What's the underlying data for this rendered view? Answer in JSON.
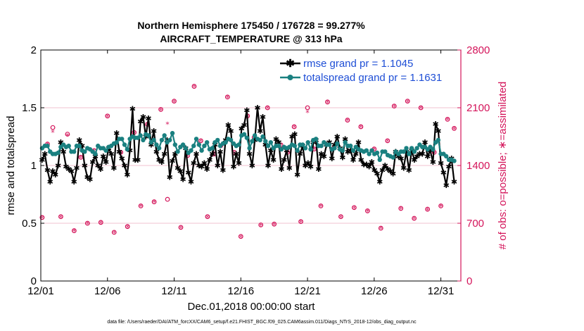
{
  "chart_data": {
    "type": "line",
    "title_line1": "Northern Hemisphere 175450 / 176728 = 99.277%",
    "title_line2": "AIRCRAFT_TEMPERATURE @ 313 hPa",
    "xlabel": "Dec.01,2018 00:00:00 start",
    "ylabel_left": "rmse and totalspread",
    "ylabel_right": "# of obs: o=possible; ∗=assimilated",
    "footnote": "data file: /Users/raeder/DAI/ATM_forcXX/CAM6_setup/f.e21.FHIST_BGC.f09_025.CAM6assim.011/Diags_NTrS_2018-12/obs_diag_output.nc",
    "x_range": [
      0,
      31.5
    ],
    "y_left_range": [
      0,
      2
    ],
    "y_right_range": [
      0,
      2800
    ],
    "x_ticks": [
      {
        "value": 0,
        "label": "12/01"
      },
      {
        "value": 5,
        "label": "12/06"
      },
      {
        "value": 10,
        "label": "12/11"
      },
      {
        "value": 15,
        "label": "12/16"
      },
      {
        "value": 20,
        "label": "12/21"
      },
      {
        "value": 25,
        "label": "12/26"
      },
      {
        "value": 30,
        "label": "12/31"
      }
    ],
    "y_left_ticks": [
      {
        "value": 0,
        "label": "0"
      },
      {
        "value": 0.5,
        "label": "0.5"
      },
      {
        "value": 1,
        "label": "1"
      },
      {
        "value": 1.5,
        "label": "1.5"
      },
      {
        "value": 2,
        "label": "2"
      }
    ],
    "y_right_ticks": [
      {
        "value": 0,
        "label": "0"
      },
      {
        "value": 700,
        "label": "700"
      },
      {
        "value": 1400,
        "label": "1400"
      },
      {
        "value": 2100,
        "label": "2100"
      },
      {
        "value": 2800,
        "label": "2800"
      }
    ],
    "series": [
      {
        "name": "rmse",
        "legend": "rmse grand pr = 1.1045",
        "color": "#000000",
        "values": [
          1.05,
          1.1,
          0.96,
          0.86,
          0.95,
          0.92,
          1.0,
          1.2,
          1.12,
          0.99,
          0.97,
          0.95,
          0.86,
          0.98,
          1.22,
          1.17,
          1.0,
          0.9,
          0.88,
          1.03,
          1.08,
          1.0,
          0.97,
          1.08,
          1.03,
          1.15,
          1.1,
          0.98,
          1.28,
          1.12,
          1.06,
          1.0,
          0.92,
          1.13,
          1.49,
          1.05,
          1.05,
          1.38,
          1.42,
          1.25,
          1.41,
          1.18,
          1.3,
          1.12,
          1.05,
          1.03,
          1.1,
          1.22,
          0.9,
          1.04,
          1.1,
          0.98,
          0.95,
          0.88,
          1.15,
          0.94,
          0.86,
          1.02,
          1.1,
          1.0,
          0.99,
          1.02,
          0.97,
          1.05,
          1.1,
          1.18,
          1.0,
          1.12,
          0.96,
          1.22,
          1.35,
          1.3,
          0.99,
          1.1,
          1.02,
          1.32,
          1.35,
          1.48,
          1.1,
          1.0,
          1.22,
          1.5,
          1.3,
          1.42,
          1.18,
          1.0,
          1.13,
          1.05,
          1.23,
          1.2,
          0.97,
          1.05,
          1.13,
          0.98,
          1.25,
          1.27,
          0.92,
          1.1,
          1.17,
          1.0,
          1.02,
          0.99,
          1.2,
          1.22,
          0.97,
          1.1,
          1.08,
          1.18,
          1.2,
          1.06,
          1.18,
          1.25,
          1.15,
          1.07,
          1.23,
          1.12,
          1.13,
          1.05,
          1.1,
          1.2,
          1.05,
          1.01,
          1.01,
          0.99,
          1.03,
          0.96,
          0.93,
          0.86,
          0.96,
          1.0,
          0.97,
          0.95,
          0.93,
          1.12,
          1.08,
          1.06,
          0.98,
          1.12,
          0.96,
          1.13,
          1.05,
          1.08,
          1.1,
          1.1,
          1.2,
          1.08,
          1.13,
          1.03,
          1.36,
          1.3,
          1.02,
          0.94,
          0.83,
          0.99,
          1.06,
          0.86
        ]
      },
      {
        "name": "totalspread",
        "legend": "totalspread grand pr = 1.1631",
        "color": "#1a8080",
        "values": [
          1.15,
          1.17,
          1.17,
          1.12,
          1.1,
          1.1,
          1.11,
          1.16,
          1.18,
          1.16,
          1.17,
          1.12,
          1.12,
          1.17,
          1.17,
          1.13,
          1.12,
          1.15,
          1.14,
          1.12,
          1.1,
          1.17,
          1.15,
          1.15,
          1.13,
          1.16,
          1.17,
          1.19,
          1.2,
          1.23,
          1.23,
          1.18,
          1.14,
          1.23,
          1.25,
          1.24,
          1.24,
          1.26,
          1.22,
          1.27,
          1.26,
          1.2,
          1.22,
          1.18,
          1.15,
          1.22,
          1.26,
          1.2,
          1.22,
          1.28,
          1.18,
          1.12,
          1.16,
          1.18,
          1.15,
          1.11,
          1.13,
          1.17,
          1.23,
          1.18,
          1.13,
          1.17,
          1.2,
          1.14,
          1.15,
          1.2,
          1.22,
          1.17,
          1.19,
          1.2,
          1.23,
          1.22,
          1.19,
          1.17,
          1.18,
          1.26,
          1.27,
          1.24,
          1.15,
          1.21,
          1.26,
          1.23,
          1.22,
          1.25,
          1.21,
          1.17,
          1.2,
          1.15,
          1.17,
          1.17,
          1.14,
          1.16,
          1.15,
          1.16,
          1.18,
          1.17,
          1.13,
          1.18,
          1.18,
          1.15,
          1.2,
          1.14,
          1.22,
          1.23,
          1.17,
          1.17,
          1.2,
          1.18,
          1.18,
          1.14,
          1.15,
          1.19,
          1.14,
          1.13,
          1.2,
          1.17,
          1.17,
          1.13,
          1.16,
          1.14,
          1.13,
          1.12,
          1.13,
          1.1,
          1.13,
          1.1,
          1.11,
          1.05,
          1.12,
          1.12,
          1.09,
          1.08,
          1.07,
          1.12,
          1.1,
          1.12,
          1.12,
          1.15,
          1.1,
          1.15,
          1.12,
          1.15,
          1.18,
          1.16,
          1.16,
          1.14,
          1.16,
          1.14,
          1.2,
          1.22,
          1.1,
          1.1,
          1.08,
          1.05,
          1.05,
          1.04
        ]
      }
    ],
    "obs_possible": [
      {
        "x": 0.1,
        "y": 770
      },
      {
        "x": 0.5,
        "y": 1660
      },
      {
        "x": 0.9,
        "y": 1860
      },
      {
        "x": 1.5,
        "y": 780
      },
      {
        "x": 2.0,
        "y": 1780
      },
      {
        "x": 2.5,
        "y": 610
      },
      {
        "x": 3.0,
        "y": 1500
      },
      {
        "x": 3.5,
        "y": 700
      },
      {
        "x": 4.0,
        "y": 1580
      },
      {
        "x": 4.5,
        "y": 710
      },
      {
        "x": 5.0,
        "y": 2000
      },
      {
        "x": 5.5,
        "y": 590
      },
      {
        "x": 6.0,
        "y": 1560
      },
      {
        "x": 6.5,
        "y": 660
      },
      {
        "x": 7.0,
        "y": 1800
      },
      {
        "x": 7.5,
        "y": 910
      },
      {
        "x": 8.0,
        "y": 1900
      },
      {
        "x": 8.5,
        "y": 960
      },
      {
        "x": 9.0,
        "y": 2080
      },
      {
        "x": 9.5,
        "y": 990
      },
      {
        "x": 10.0,
        "y": 2180
      },
      {
        "x": 10.5,
        "y": 650
      },
      {
        "x": 11.0,
        "y": 1520
      },
      {
        "x": 11.5,
        "y": 2360
      },
      {
        "x": 12.0,
        "y": 1700
      },
      {
        "x": 12.5,
        "y": 780
      },
      {
        "x": 13.0,
        "y": 1540
      },
      {
        "x": 13.5,
        "y": 1640
      },
      {
        "x": 14.0,
        "y": 2230
      },
      {
        "x": 14.5,
        "y": 1560
      },
      {
        "x": 15.0,
        "y": 540
      },
      {
        "x": 15.5,
        "y": 2000
      },
      {
        "x": 16.0,
        "y": 1740
      },
      {
        "x": 16.5,
        "y": 680
      },
      {
        "x": 17.0,
        "y": 2100
      },
      {
        "x": 17.5,
        "y": 690
      },
      {
        "x": 18.0,
        "y": 1650
      },
      {
        "x": 18.5,
        "y": 1560
      },
      {
        "x": 19.0,
        "y": 1870
      },
      {
        "x": 19.5,
        "y": 720
      },
      {
        "x": 20.0,
        "y": 2100
      },
      {
        "x": 20.5,
        "y": 1600
      },
      {
        "x": 21.0,
        "y": 910
      },
      {
        "x": 21.5,
        "y": 2170
      },
      {
        "x": 22.0,
        "y": 1620
      },
      {
        "x": 22.5,
        "y": 780
      },
      {
        "x": 23.0,
        "y": 1950
      },
      {
        "x": 23.5,
        "y": 890
      },
      {
        "x": 24.0,
        "y": 1870
      },
      {
        "x": 24.5,
        "y": 850
      },
      {
        "x": 25.0,
        "y": 1600
      },
      {
        "x": 25.5,
        "y": 640
      },
      {
        "x": 26.0,
        "y": 1700
      },
      {
        "x": 26.5,
        "y": 2120
      },
      {
        "x": 27.0,
        "y": 880
      },
      {
        "x": 27.5,
        "y": 2180
      },
      {
        "x": 28.0,
        "y": 760
      },
      {
        "x": 28.5,
        "y": 2100
      },
      {
        "x": 29.0,
        "y": 870
      },
      {
        "x": 29.5,
        "y": 1560
      },
      {
        "x": 30.0,
        "y": 910
      },
      {
        "x": 30.5,
        "y": 1960
      },
      {
        "x": 31.0,
        "y": 1850
      }
    ],
    "obs_assimilated": [
      {
        "x": 0.1,
        "y": 760
      },
      {
        "x": 0.5,
        "y": 1650
      },
      {
        "x": 0.9,
        "y": 1800
      },
      {
        "x": 1.5,
        "y": 770
      },
      {
        "x": 2.0,
        "y": 1760
      },
      {
        "x": 2.5,
        "y": 600
      },
      {
        "x": 3.0,
        "y": 1490
      },
      {
        "x": 3.5,
        "y": 690
      },
      {
        "x": 4.0,
        "y": 1570
      },
      {
        "x": 4.5,
        "y": 700
      },
      {
        "x": 5.0,
        "y": 1990
      },
      {
        "x": 5.5,
        "y": 580
      },
      {
        "x": 6.0,
        "y": 1550
      },
      {
        "x": 6.5,
        "y": 650
      },
      {
        "x": 7.0,
        "y": 1790
      },
      {
        "x": 7.5,
        "y": 900
      },
      {
        "x": 8.0,
        "y": 1890
      },
      {
        "x": 8.5,
        "y": 950
      },
      {
        "x": 9.0,
        "y": 2070
      },
      {
        "x": 9.5,
        "y": 1900
      },
      {
        "x": 10.0,
        "y": 2170
      },
      {
        "x": 10.5,
        "y": 640
      },
      {
        "x": 11.0,
        "y": 1510
      },
      {
        "x": 11.5,
        "y": 2350
      },
      {
        "x": 12.0,
        "y": 1690
      },
      {
        "x": 12.5,
        "y": 770
      },
      {
        "x": 13.0,
        "y": 1530
      },
      {
        "x": 13.5,
        "y": 1630
      },
      {
        "x": 14.0,
        "y": 2220
      },
      {
        "x": 14.5,
        "y": 1550
      },
      {
        "x": 15.0,
        "y": 530
      },
      {
        "x": 15.5,
        "y": 1990
      },
      {
        "x": 16.0,
        "y": 1730
      },
      {
        "x": 16.5,
        "y": 670
      },
      {
        "x": 17.0,
        "y": 2090
      },
      {
        "x": 17.5,
        "y": 680
      },
      {
        "x": 18.0,
        "y": 1640
      },
      {
        "x": 18.5,
        "y": 1550
      },
      {
        "x": 19.0,
        "y": 1860
      },
      {
        "x": 19.5,
        "y": 710
      },
      {
        "x": 20.0,
        "y": 2040
      },
      {
        "x": 20.5,
        "y": 1590
      },
      {
        "x": 21.0,
        "y": 900
      },
      {
        "x": 21.5,
        "y": 2160
      },
      {
        "x": 22.0,
        "y": 1610
      },
      {
        "x": 22.5,
        "y": 770
      },
      {
        "x": 23.0,
        "y": 1940
      },
      {
        "x": 23.5,
        "y": 880
      },
      {
        "x": 24.0,
        "y": 1860
      },
      {
        "x": 24.5,
        "y": 840
      },
      {
        "x": 25.0,
        "y": 1590
      },
      {
        "x": 25.5,
        "y": 630
      },
      {
        "x": 26.0,
        "y": 1690
      },
      {
        "x": 26.5,
        "y": 2110
      },
      {
        "x": 27.0,
        "y": 870
      },
      {
        "x": 27.5,
        "y": 2170
      },
      {
        "x": 28.0,
        "y": 750
      },
      {
        "x": 28.5,
        "y": 2090
      },
      {
        "x": 29.0,
        "y": 860
      },
      {
        "x": 29.5,
        "y": 1550
      },
      {
        "x": 30.0,
        "y": 900
      },
      {
        "x": 30.5,
        "y": 1950
      },
      {
        "x": 31.0,
        "y": 1840
      }
    ],
    "colors": {
      "rmse": "#000000",
      "totalspread": "#1a8080",
      "obs": "#d4145a",
      "legend_text": "#1f4fd6",
      "right_axis": "#d4145a",
      "grid": "#f0c0d0"
    }
  }
}
